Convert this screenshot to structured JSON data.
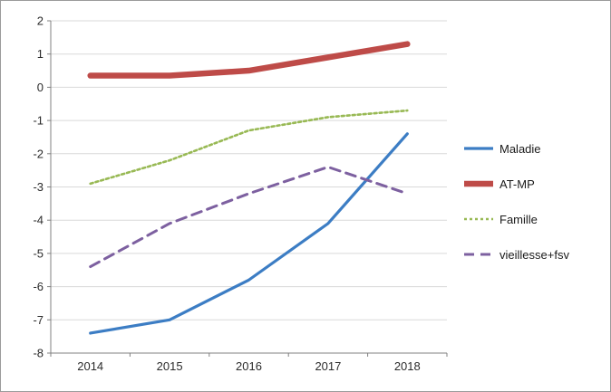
{
  "chart_data": {
    "type": "line",
    "title": "",
    "xlabel": "",
    "ylabel": "",
    "x": [
      "2014",
      "2015",
      "2016",
      "2017",
      "2018"
    ],
    "ylim": [
      -8,
      2
    ],
    "yticks": [
      2,
      1,
      0,
      -1,
      -2,
      -3,
      -4,
      -5,
      -6,
      -7,
      -8
    ],
    "grid": true,
    "legend_position": "right",
    "series": [
      {
        "name": "Maladie",
        "color": "#3C7DC4",
        "width": 3.2,
        "dash": "",
        "values": [
          -7.4,
          -7.0,
          -5.8,
          -4.1,
          -1.4
        ]
      },
      {
        "name": "AT-MP",
        "color": "#BE4B48",
        "width": 6.5,
        "dash": "",
        "values": [
          0.35,
          0.35,
          0.5,
          0.9,
          1.3
        ]
      },
      {
        "name": "Famille",
        "color": "#98B954",
        "width": 2.6,
        "dash": "3 3",
        "values": [
          -2.9,
          -2.2,
          -1.3,
          -0.9,
          -0.7
        ]
      },
      {
        "name": "vieillesse+fsv",
        "color": "#7D60A0",
        "width": 3.0,
        "dash": "11 7",
        "values": [
          -5.4,
          -4.1,
          -3.2,
          -2.4,
          -3.2
        ]
      }
    ]
  },
  "colors": {
    "grid": "#d9d9d9",
    "axis": "#808080",
    "tick_text": "#2b2b2b",
    "border": "#9b9b9b",
    "background": "#ffffff"
  }
}
